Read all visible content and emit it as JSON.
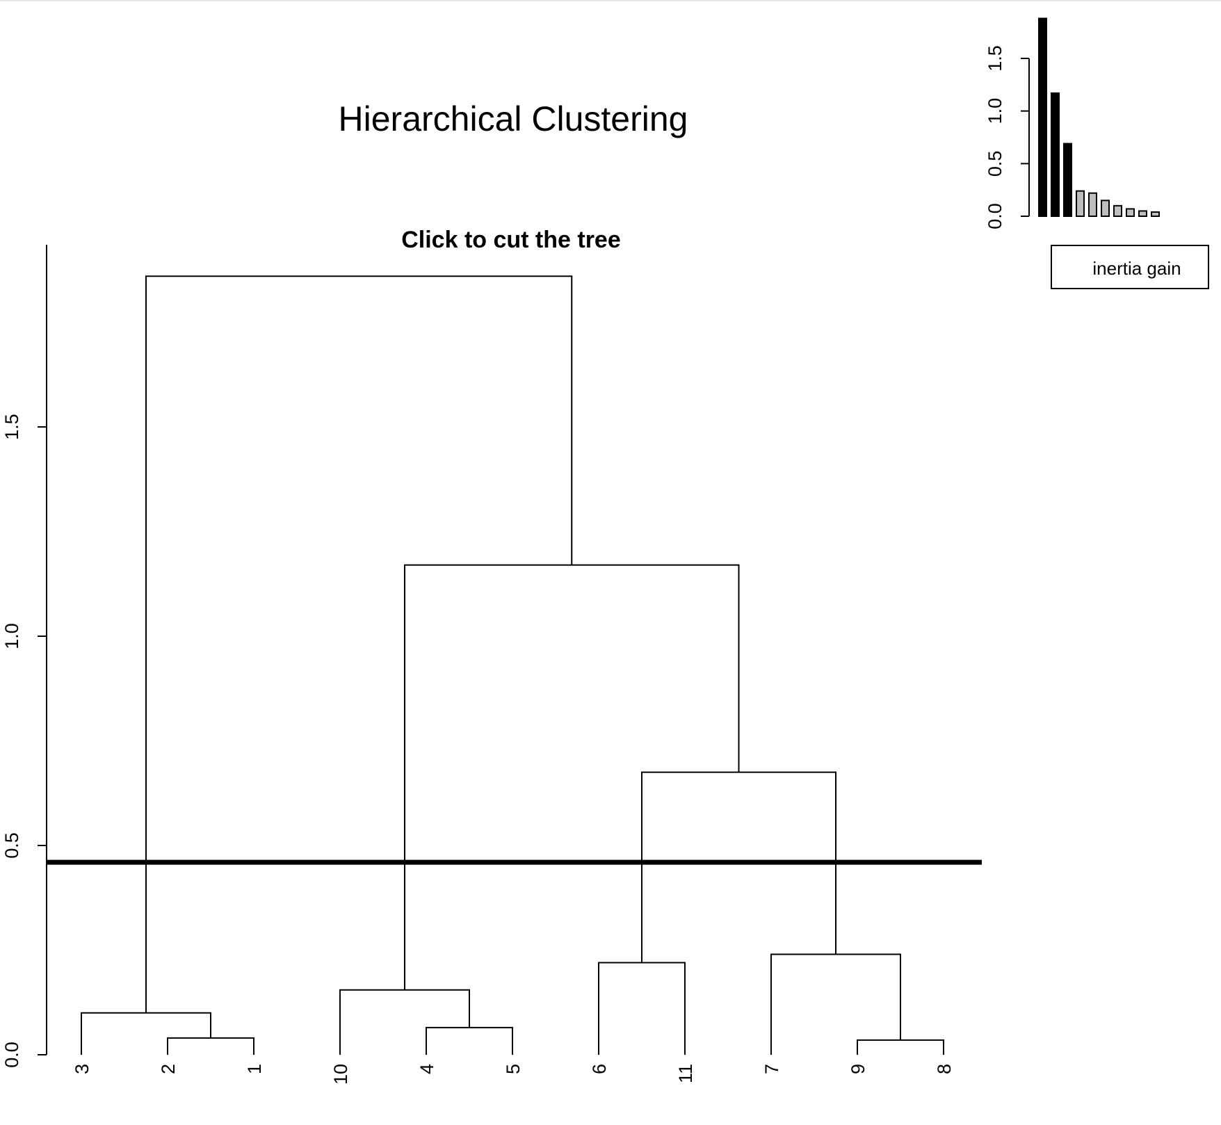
{
  "chart_data": [
    {
      "type": "dendrogram",
      "title": "Hierarchical Clustering",
      "subtitle": "Click to cut the tree",
      "ylim": [
        0,
        1.9
      ],
      "yticks": [
        0.0,
        0.5,
        1.0,
        1.5
      ],
      "ytick_labels": [
        "0.0",
        "0.5",
        "1.0",
        "1.5"
      ],
      "leaves": [
        "3",
        "2",
        "1",
        "10",
        "4",
        "5",
        "6",
        "11",
        "7",
        "9",
        "8"
      ],
      "merges": [
        {
          "left": "2",
          "right": "1",
          "height": 0.04
        },
        {
          "left": "3",
          "right": "2+1",
          "height": 0.1
        },
        {
          "left": "4",
          "right": "5",
          "height": 0.065
        },
        {
          "left": "10",
          "right": "4+5",
          "height": 0.155
        },
        {
          "left": "6",
          "right": "11",
          "height": 0.22
        },
        {
          "left": "9",
          "right": "8",
          "height": 0.035
        },
        {
          "left": "7",
          "right": "9+8",
          "height": 0.24
        },
        {
          "left": "6+11",
          "right": "7+9+8",
          "height": 0.675
        },
        {
          "left": "10+4+5",
          "right": "6+11+7+9+8",
          "height": 1.17
        },
        {
          "left": "3+2+1",
          "right": "10+4+5+6+11+7+9+8",
          "height": 1.86
        }
      ],
      "cut_height": 0.46
    },
    {
      "type": "bar",
      "legend": "inertia gain",
      "ylim": [
        0,
        1.9
      ],
      "yticks": [
        0.0,
        0.5,
        1.0,
        1.5
      ],
      "ytick_labels": [
        "0.0",
        "0.5",
        "1.0",
        "1.5"
      ],
      "values": [
        1.88,
        1.17,
        0.69,
        0.24,
        0.22,
        0.15,
        0.1,
        0.07,
        0.05,
        0.04
      ],
      "highlighted_count": 3,
      "colors": {
        "highlighted": "#000000",
        "other": "#bebebe"
      }
    }
  ]
}
